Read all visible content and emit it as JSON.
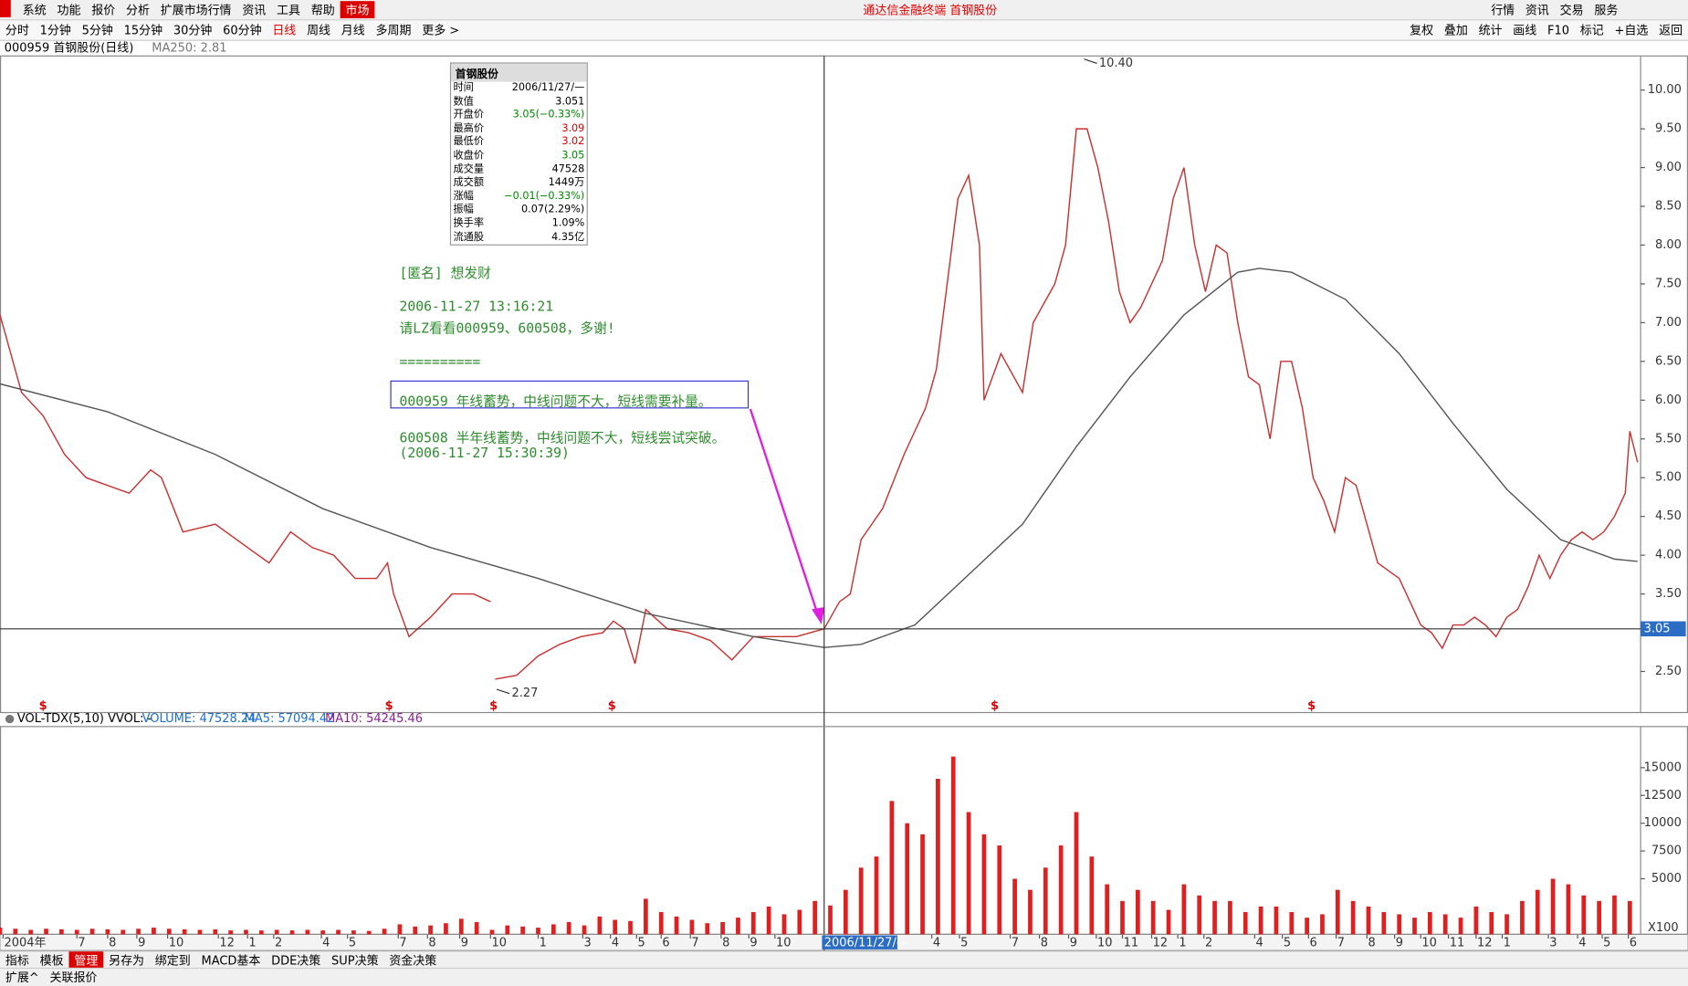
{
  "menu": {
    "items": [
      "系统",
      "功能",
      "报价",
      "分析",
      "扩展市场行情",
      "资讯",
      "工具",
      "帮助"
    ],
    "tab": "市场",
    "title": "通达信金融终端 首钢股份",
    "right": [
      "行情",
      "资讯",
      "交易",
      "服务"
    ]
  },
  "toolbar": {
    "periods": [
      "分时",
      "1分钟",
      "5分钟",
      "15分钟",
      "30分钟",
      "60分钟",
      "日线",
      "周线",
      "月线",
      "多周期",
      "更多 >"
    ],
    "active": "日线",
    "right": [
      "复权",
      "叠加",
      "统计",
      "画线",
      "F10",
      "标记",
      "+自选",
      "返回"
    ]
  },
  "header": {
    "symbol": "000959 首钢股份(日线)",
    "ma": "MA250: 2.81"
  },
  "info_panel": {
    "title": "首钢股份",
    "rows": [
      {
        "label": "时间",
        "value": "2006/11/27/—",
        "color": "#000"
      },
      {
        "label": "数值",
        "value": "3.051",
        "color": "#000"
      },
      {
        "label": "开盘价",
        "value": "3.05(−0.33%)",
        "color": "#080"
      },
      {
        "label": "最高价",
        "value": "3.09",
        "color": "#d00"
      },
      {
        "label": "最低价",
        "value": "3.02",
        "color": "#d00"
      },
      {
        "label": "收盘价",
        "value": "3.05",
        "color": "#080"
      },
      {
        "label": "成交量",
        "value": "47528",
        "color": "#000"
      },
      {
        "label": "成交额",
        "value": "1449万",
        "color": "#000"
      },
      {
        "label": "涨幅",
        "value": "−0.01(−0.33%)",
        "color": "#080"
      },
      {
        "label": "振幅",
        "value": "0.07(2.29%)",
        "color": "#000"
      },
      {
        "label": "换手率",
        "value": "1.09%",
        "color": "#000"
      },
      {
        "label": "流通股",
        "value": "4.35亿",
        "color": "#000"
      }
    ]
  },
  "note": [
    "[匿名] 想发财",
    "2006-11-27 13:16:21",
    "请LZ看看000959、600508，多谢!",
    "==========",
    "000959 年线蓄势，中线问题不大，短线需要补量。",
    "600508 半年线蓄势，中线问题不大，短线尝试突破。",
    "(2006-11-27 15:30:39)"
  ],
  "chart_data": [
    {
      "type": "line",
      "xlim": [
        0,
        1067
      ],
      "ylim": [
        1.97,
        10.44
      ],
      "yticks": [
        {
          "value": 2.5,
          "label": "2.50"
        },
        {
          "value": 3,
          "label": "3.00"
        },
        {
          "value": 3.5,
          "label": "3.50"
        },
        {
          "value": 4,
          "label": "4.00"
        },
        {
          "value": 4.5,
          "label": "4.50"
        },
        {
          "value": 5,
          "label": "5.00"
        },
        {
          "value": 5.5,
          "label": "5.50"
        },
        {
          "value": 6,
          "label": "6.00"
        },
        {
          "value": 6.5,
          "label": "6.50"
        },
        {
          "value": 7,
          "label": "7.00"
        },
        {
          "value": 7.5,
          "label": "7.50"
        },
        {
          "value": 8,
          "label": "8.00"
        },
        {
          "value": 8.5,
          "label": "8.50"
        },
        {
          "value": 9,
          "label": "9.00"
        },
        {
          "value": 9.5,
          "label": "9.50"
        },
        {
          "value": 10,
          "label": "10.00"
        }
      ],
      "xticks": [
        {
          "value": 2,
          "label": "2004年"
        },
        {
          "value": 50,
          "label": "7"
        },
        {
          "value": 70,
          "label": "8"
        },
        {
          "value": 89,
          "label": "9"
        },
        {
          "value": 109,
          "label": "10"
        },
        {
          "value": 142,
          "label": "12"
        },
        {
          "value": 161,
          "label": "1"
        },
        {
          "value": 178,
          "label": "2"
        },
        {
          "value": 209,
          "label": "4"
        },
        {
          "value": 226,
          "label": "5"
        },
        {
          "value": 259,
          "label": "7"
        },
        {
          "value": 278,
          "label": "8"
        },
        {
          "value": 299,
          "label": "9"
        },
        {
          "value": 319,
          "label": "10"
        },
        {
          "value": 350,
          "label": "1"
        },
        {
          "value": 379,
          "label": "3"
        },
        {
          "value": 397,
          "label": "4"
        },
        {
          "value": 414,
          "label": "5"
        },
        {
          "value": 430,
          "label": "6"
        },
        {
          "value": 449,
          "label": "7"
        },
        {
          "value": 469,
          "label": "8"
        },
        {
          "value": 487,
          "label": "9"
        },
        {
          "value": 504,
          "label": "10"
        },
        {
          "value": 606,
          "label": "4"
        },
        {
          "value": 624,
          "label": "5"
        },
        {
          "value": 657,
          "label": "7"
        },
        {
          "value": 676,
          "label": "8"
        },
        {
          "value": 695,
          "label": "9"
        },
        {
          "value": 713,
          "label": "10"
        },
        {
          "value": 730,
          "label": "11"
        },
        {
          "value": 749,
          "label": "12"
        },
        {
          "value": 766,
          "label": "1"
        },
        {
          "value": 783,
          "label": "2"
        },
        {
          "value": 816,
          "label": "4"
        },
        {
          "value": 834,
          "label": "5"
        },
        {
          "value": 851,
          "label": "6"
        },
        {
          "value": 869,
          "label": "7"
        },
        {
          "value": 889,
          "label": "8"
        },
        {
          "value": 907,
          "label": "9"
        },
        {
          "value": 924,
          "label": "10"
        },
        {
          "value": 942,
          "label": "11"
        },
        {
          "value": 960,
          "label": "12"
        },
        {
          "value": 977,
          "label": "1"
        },
        {
          "value": 1007,
          "label": "3"
        },
        {
          "value": 1026,
          "label": "4"
        },
        {
          "value": 1042,
          "label": "5"
        },
        {
          "value": 1059,
          "label": "6"
        }
      ],
      "crosshair": {
        "x": 536,
        "value": 3.05,
        "date": "2006/11/27/—"
      },
      "annotations": [
        {
          "x": 705,
          "value": 10.4,
          "label": "10.40"
        },
        {
          "x": 323,
          "value": 2.27,
          "label": "2.27"
        }
      ],
      "events": {
        "label": "$",
        "x": [
          28,
          253,
          321,
          398,
          647,
          853
        ]
      },
      "x": [
        0,
        14,
        28,
        42,
        56,
        70,
        84,
        98,
        105,
        119,
        140,
        161,
        175,
        189,
        203,
        217,
        231,
        245,
        252,
        256,
        266,
        280,
        294,
        308,
        319,
        320,
        322,
        336,
        350,
        364,
        378,
        392,
        399,
        406,
        413,
        420,
        434,
        448,
        462,
        476,
        490,
        504,
        518,
        536,
        546,
        553,
        560,
        574,
        588,
        602,
        609,
        616,
        623,
        630,
        637,
        640,
        651,
        665,
        672,
        686,
        693,
        700,
        707,
        714,
        721,
        728,
        735,
        742,
        756,
        763,
        770,
        777,
        784,
        791,
        798,
        805,
        812,
        819,
        826,
        833,
        840,
        847,
        854,
        861,
        868,
        875,
        882,
        889,
        896,
        903,
        910,
        917,
        924,
        931,
        938,
        945,
        952,
        959,
        966,
        973,
        980,
        987,
        994,
        1001,
        1008,
        1015,
        1022,
        1029,
        1036,
        1043,
        1050,
        1057,
        1060,
        1065
      ],
      "series": [
        {
          "name": "收盘价",
          "color": "#c83030",
          "values": [
            7.1,
            6.1,
            5.8,
            5.3,
            5.0,
            4.9,
            4.8,
            5.1,
            5.0,
            4.3,
            4.4,
            4.1,
            3.9,
            4.3,
            4.1,
            4.0,
            3.7,
            3.7,
            3.9,
            3.5,
            2.95,
            3.2,
            3.5,
            3.5,
            3.4,
            null,
            2.4,
            2.45,
            2.7,
            2.85,
            2.95,
            3.0,
            3.15,
            3.05,
            2.6,
            3.3,
            3.05,
            3.0,
            2.9,
            2.65,
            2.95,
            2.95,
            2.95,
            3.05,
            3.4,
            3.5,
            4.2,
            4.6,
            5.3,
            5.9,
            6.4,
            7.5,
            8.6,
            8.9,
            8.0,
            6.0,
            6.6,
            6.1,
            7.0,
            7.5,
            8.0,
            9.5,
            9.5,
            9.0,
            8.3,
            7.4,
            7.0,
            7.2,
            7.8,
            8.6,
            9.0,
            8.0,
            7.4,
            8.0,
            7.9,
            7.0,
            6.3,
            6.2,
            5.5,
            6.5,
            6.5,
            5.9,
            5.0,
            4.7,
            4.3,
            5.0,
            4.9,
            4.4,
            3.9,
            3.8,
            3.7,
            3.4,
            3.1,
            3.0,
            2.8,
            3.1,
            3.1,
            3.2,
            3.1,
            2.95,
            3.2,
            3.3,
            3.6,
            4.0,
            3.7,
            4.0,
            4.2,
            4.3,
            4.2,
            4.3,
            4.5,
            4.8,
            5.6,
            5.2
          ]
        }
      ],
      "ma": {
        "x": [
          0,
          70,
          140,
          210,
          280,
          350,
          420,
          490,
          536,
          560,
          595,
          630,
          665,
          700,
          735,
          770,
          805,
          819,
          840,
          875,
          910,
          945,
          980,
          1015,
          1050,
          1065
        ],
        "color": "#555",
        "values": [
          6.21,
          5.85,
          5.3,
          4.6,
          4.1,
          3.7,
          3.25,
          2.95,
          2.81,
          2.85,
          3.1,
          3.75,
          4.4,
          5.4,
          6.3,
          7.1,
          7.65,
          7.7,
          7.65,
          7.3,
          6.6,
          5.7,
          4.85,
          4.2,
          3.95,
          3.92
        ]
      }
    },
    {
      "type": "bar",
      "xlim": [
        0,
        1067
      ],
      "ylim": [
        0,
        18700
      ],
      "legend": {
        "title": "VOL-TDX(5,10) VVOL: -",
        "volume": "VOLUME: 47528.24",
        "ma5": "MA5: 57094.42",
        "ma10": "MA10: 54245.46"
      },
      "unit": "X100",
      "yticks": [
        5000,
        7500,
        10000,
        12500,
        15000
      ],
      "x": [
        0,
        10,
        20,
        30,
        40,
        50,
        60,
        70,
        80,
        90,
        100,
        110,
        120,
        130,
        140,
        150,
        160,
        170,
        180,
        190,
        200,
        210,
        220,
        230,
        240,
        250,
        260,
        270,
        280,
        290,
        300,
        310,
        320,
        330,
        340,
        350,
        360,
        370,
        380,
        390,
        400,
        410,
        420,
        430,
        440,
        450,
        460,
        470,
        480,
        490,
        500,
        510,
        520,
        530,
        540,
        550,
        560,
        570,
        580,
        590,
        600,
        610,
        620,
        630,
        640,
        650,
        660,
        670,
        680,
        690,
        700,
        710,
        720,
        730,
        740,
        750,
        760,
        770,
        780,
        790,
        800,
        810,
        820,
        830,
        840,
        850,
        860,
        870,
        880,
        890,
        900,
        910,
        920,
        930,
        940,
        950,
        960,
        970,
        980,
        990,
        1000,
        1010,
        1020,
        1030,
        1040,
        1050,
        1060
      ],
      "color": "#e02020",
      "values": [
        600,
        500,
        400,
        500,
        450,
        400,
        500,
        450,
        400,
        500,
        600,
        500,
        450,
        400,
        450,
        350,
        400,
        350,
        400,
        350,
        400,
        350,
        400,
        350,
        300,
        500,
        900,
        700,
        800,
        1000,
        1400,
        1100,
        400,
        800,
        700,
        600,
        900,
        1100,
        800,
        1600,
        1300,
        1200,
        3200,
        2000,
        1600,
        1300,
        1000,
        1100,
        1500,
        2000,
        2500,
        1800,
        2200,
        3000,
        2600,
        4000,
        6000,
        7000,
        12000,
        10000,
        9000,
        14000,
        16000,
        11000,
        9000,
        8000,
        5000,
        4000,
        6000,
        8000,
        11000,
        7000,
        4500,
        3000,
        4000,
        3000,
        2200,
        4500,
        3500,
        3000,
        3000,
        2000,
        2500,
        2500,
        2000,
        1500,
        1800,
        4000,
        3000,
        2500,
        2000,
        1800,
        1500,
        2000,
        1800,
        1500,
        2500,
        2000,
        1800,
        3000,
        4000,
        5000,
        4500,
        3500,
        3000,
        3500,
        3000
      ]
    }
  ],
  "tabs": {
    "items": [
      "指标",
      "模板",
      "管理",
      "另存为",
      "绑定到",
      "MACD基本",
      "DDE决策",
      "SUP决策",
      "资金决策"
    ],
    "active": "管理",
    "row2": [
      "扩展^",
      "关联报价"
    ]
  }
}
